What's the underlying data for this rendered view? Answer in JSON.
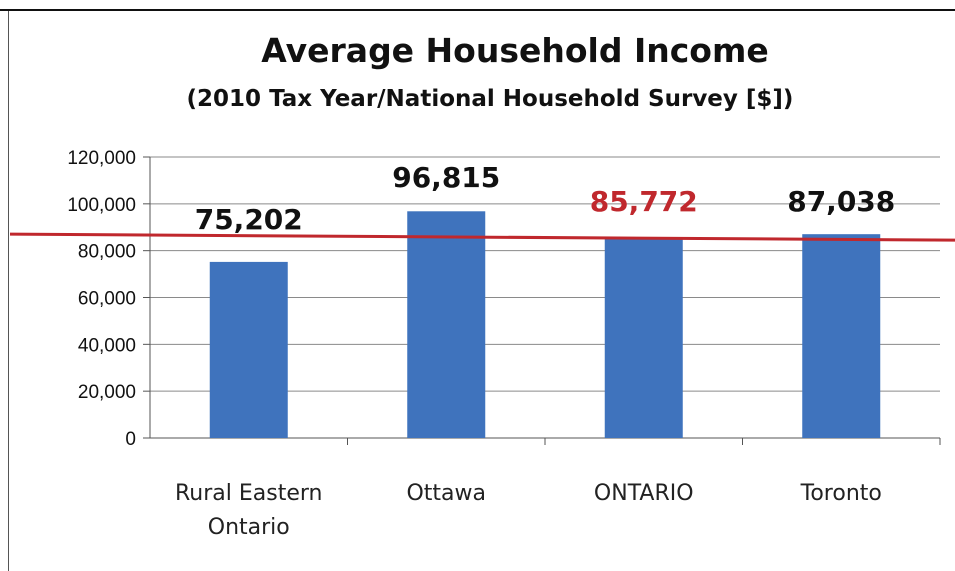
{
  "chart_data": {
    "type": "bar",
    "title": "Average Household Income",
    "subtitle": "(2010 Tax Year/National Household Survey [$])",
    "categories": [
      [
        "Rural Eastern",
        "Ontario"
      ],
      [
        "Ottawa"
      ],
      [
        "ONTARIO"
      ],
      [
        "Toronto"
      ]
    ],
    "values": [
      75202,
      96815,
      85772,
      87038
    ],
    "data_labels": [
      "75,202",
      "96,815",
      "85,772",
      "87,038"
    ],
    "data_label_colors": [
      "#111111",
      "#111111",
      "#c0282d",
      "#111111"
    ],
    "ylim": [
      0,
      120000
    ],
    "yticks": [
      0,
      20000,
      40000,
      60000,
      80000,
      100000,
      120000
    ],
    "ytick_labels": [
      "0",
      "20,000",
      "40,000",
      "60,000",
      "80,000",
      "100,000",
      "120,000"
    ],
    "grid": true,
    "reference_line": {
      "value": 85772,
      "color": "#c0282d"
    },
    "bar_color": "#3f73bd"
  }
}
